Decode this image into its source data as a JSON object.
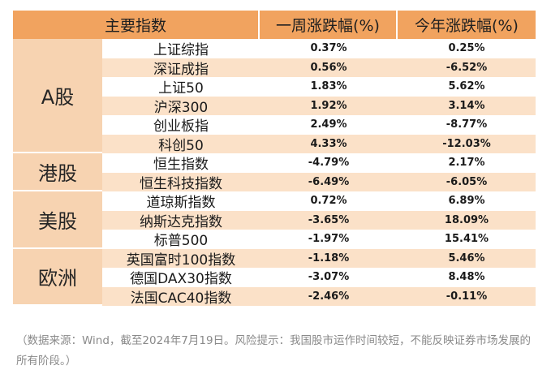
{
  "header": {
    "col1": "主要指数",
    "col2": "一周涨跌幅(%)",
    "col3": "今年涨跌幅(%)"
  },
  "groups": [
    {
      "label": "A股",
      "rows": [
        {
          "name": "上证综指",
          "week": "0.37%",
          "ytd": "0.25%"
        },
        {
          "name": "深证成指",
          "week": "0.56%",
          "ytd": "-6.52%"
        },
        {
          "name": "上证50",
          "week": "1.83%",
          "ytd": "5.62%"
        },
        {
          "name": "沪深300",
          "week": "1.92%",
          "ytd": "3.14%"
        },
        {
          "name": "创业板指",
          "week": "2.49%",
          "ytd": "-8.77%"
        },
        {
          "name": "科创50",
          "week": "4.33%",
          "ytd": "-12.03%"
        }
      ]
    },
    {
      "label": "港股",
      "rows": [
        {
          "name": "恒生指数",
          "week": "-4.79%",
          "ytd": "2.17%"
        },
        {
          "name": "恒生科技指数",
          "week": "-6.49%",
          "ytd": "-6.05%"
        }
      ]
    },
    {
      "label": "美股",
      "rows": [
        {
          "name": "道琼斯指数",
          "week": "0.72%",
          "ytd": "6.89%"
        },
        {
          "name": "纳斯达克指数",
          "week": "-3.65%",
          "ytd": "18.09%"
        },
        {
          "name": "标普500",
          "week": "-1.97%",
          "ytd": "15.41%"
        }
      ]
    },
    {
      "label": "欧洲",
      "rows": [
        {
          "name": "英国富时100指数",
          "week": "-1.18%",
          "ytd": "5.46%"
        },
        {
          "name": "德国DAX30指数",
          "week": "-3.07%",
          "ytd": "8.48%"
        },
        {
          "name": "法国CAC40指数",
          "week": "-2.46%",
          "ytd": "-0.11%"
        }
      ]
    }
  ],
  "footnote": "（数据来源：Wind，截至2024年7月19日。风险提示：我国股市运作时间较短，不能反映证券市场发展的所有阶段。）",
  "colors": {
    "header": "#f1a35f",
    "group": "#f7d3b1",
    "stripe": "#fbe1c8"
  }
}
